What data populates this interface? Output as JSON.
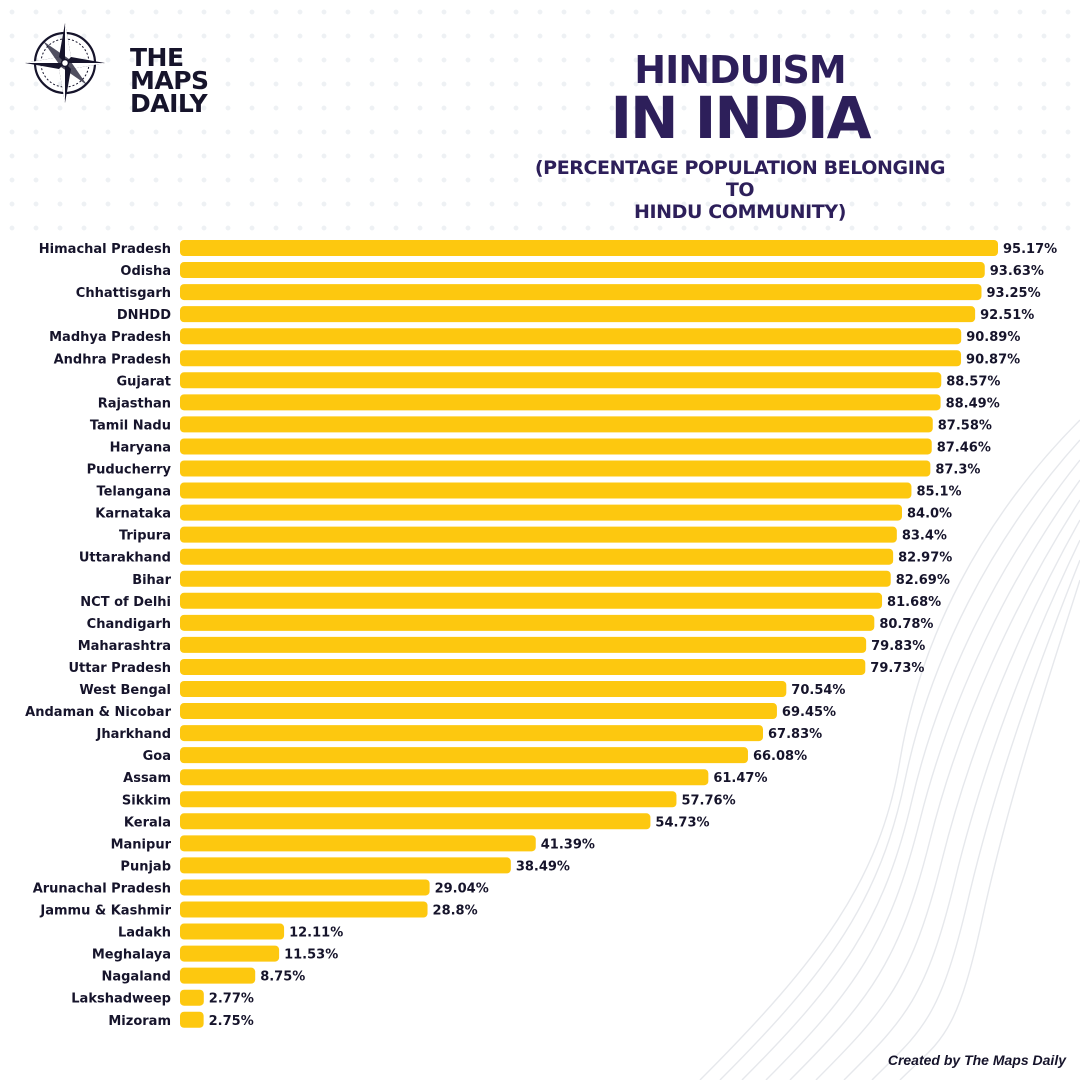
{
  "brand": {
    "line1": "THE",
    "line2": "MAPS",
    "line3": "DAILY"
  },
  "title": {
    "line1": "HINDUISM",
    "line2": "IN INDIA"
  },
  "subtitle": {
    "line1": "(PERCENTAGE POPULATION BELONGING TO",
    "line2": "HINDU COMMUNITY)"
  },
  "credit": "Created by The Maps Daily",
  "colors": {
    "bar": "#fdc80f",
    "title": "#2d1f5a",
    "text": "#16142b"
  },
  "chart_data": {
    "type": "bar",
    "orientation": "horizontal",
    "title": "HINDUISM IN INDIA",
    "subtitle": "(PERCENTAGE POPULATION BELONGING TO HINDU COMMUNITY)",
    "categories": [
      "Himachal Pradesh",
      "Odisha",
      "Chhattisgarh",
      "DNHDD",
      "Madhya Pradesh",
      "Andhra Pradesh",
      "Gujarat",
      "Rajasthan",
      "Tamil Nadu",
      "Haryana",
      "Puducherry",
      "Telangana",
      "Karnataka",
      "Tripura",
      "Uttarakhand",
      "Bihar",
      "NCT of Delhi",
      "Chandigarh",
      "Maharashtra",
      "Uttar Pradesh",
      "West Bengal",
      "Andaman & Nicobar",
      "Jharkhand",
      "Goa",
      "Assam",
      "Sikkim",
      "Kerala",
      "Manipur",
      "Punjab",
      "Arunachal Pradesh",
      "Jammu & Kashmir",
      "Ladakh",
      "Meghalaya",
      "Nagaland",
      "Lakshadweep",
      "Mizoram"
    ],
    "values": [
      95.17,
      93.63,
      93.25,
      92.51,
      90.89,
      90.87,
      88.57,
      88.49,
      87.58,
      87.46,
      87.3,
      85.1,
      84.0,
      83.4,
      82.97,
      82.69,
      81.68,
      80.78,
      79.83,
      79.73,
      70.54,
      69.45,
      67.83,
      66.08,
      61.47,
      57.76,
      54.73,
      41.39,
      38.49,
      29.04,
      28.8,
      12.11,
      11.53,
      8.75,
      2.77,
      2.75
    ],
    "labels": [
      "95.17%",
      "93.63%",
      "93.25%",
      "92.51%",
      "90.89%",
      "90.87%",
      "88.57%",
      "88.49%",
      "87.58%",
      "87.46%",
      "87.3%",
      "85.1%",
      "84.0%",
      "83.4%",
      "82.97%",
      "82.69%",
      "81.68%",
      "80.78%",
      "79.83%",
      "79.73%",
      "70.54%",
      "69.45%",
      "67.83%",
      "66.08%",
      "61.47%",
      "57.76%",
      "54.73%",
      "41.39%",
      "38.49%",
      "29.04%",
      "28.8%",
      "12.11%",
      "11.53%",
      "8.75%",
      "2.77%",
      "2.75%"
    ],
    "xlim": [
      0,
      95.17
    ],
    "grid": false,
    "legend": "none"
  }
}
